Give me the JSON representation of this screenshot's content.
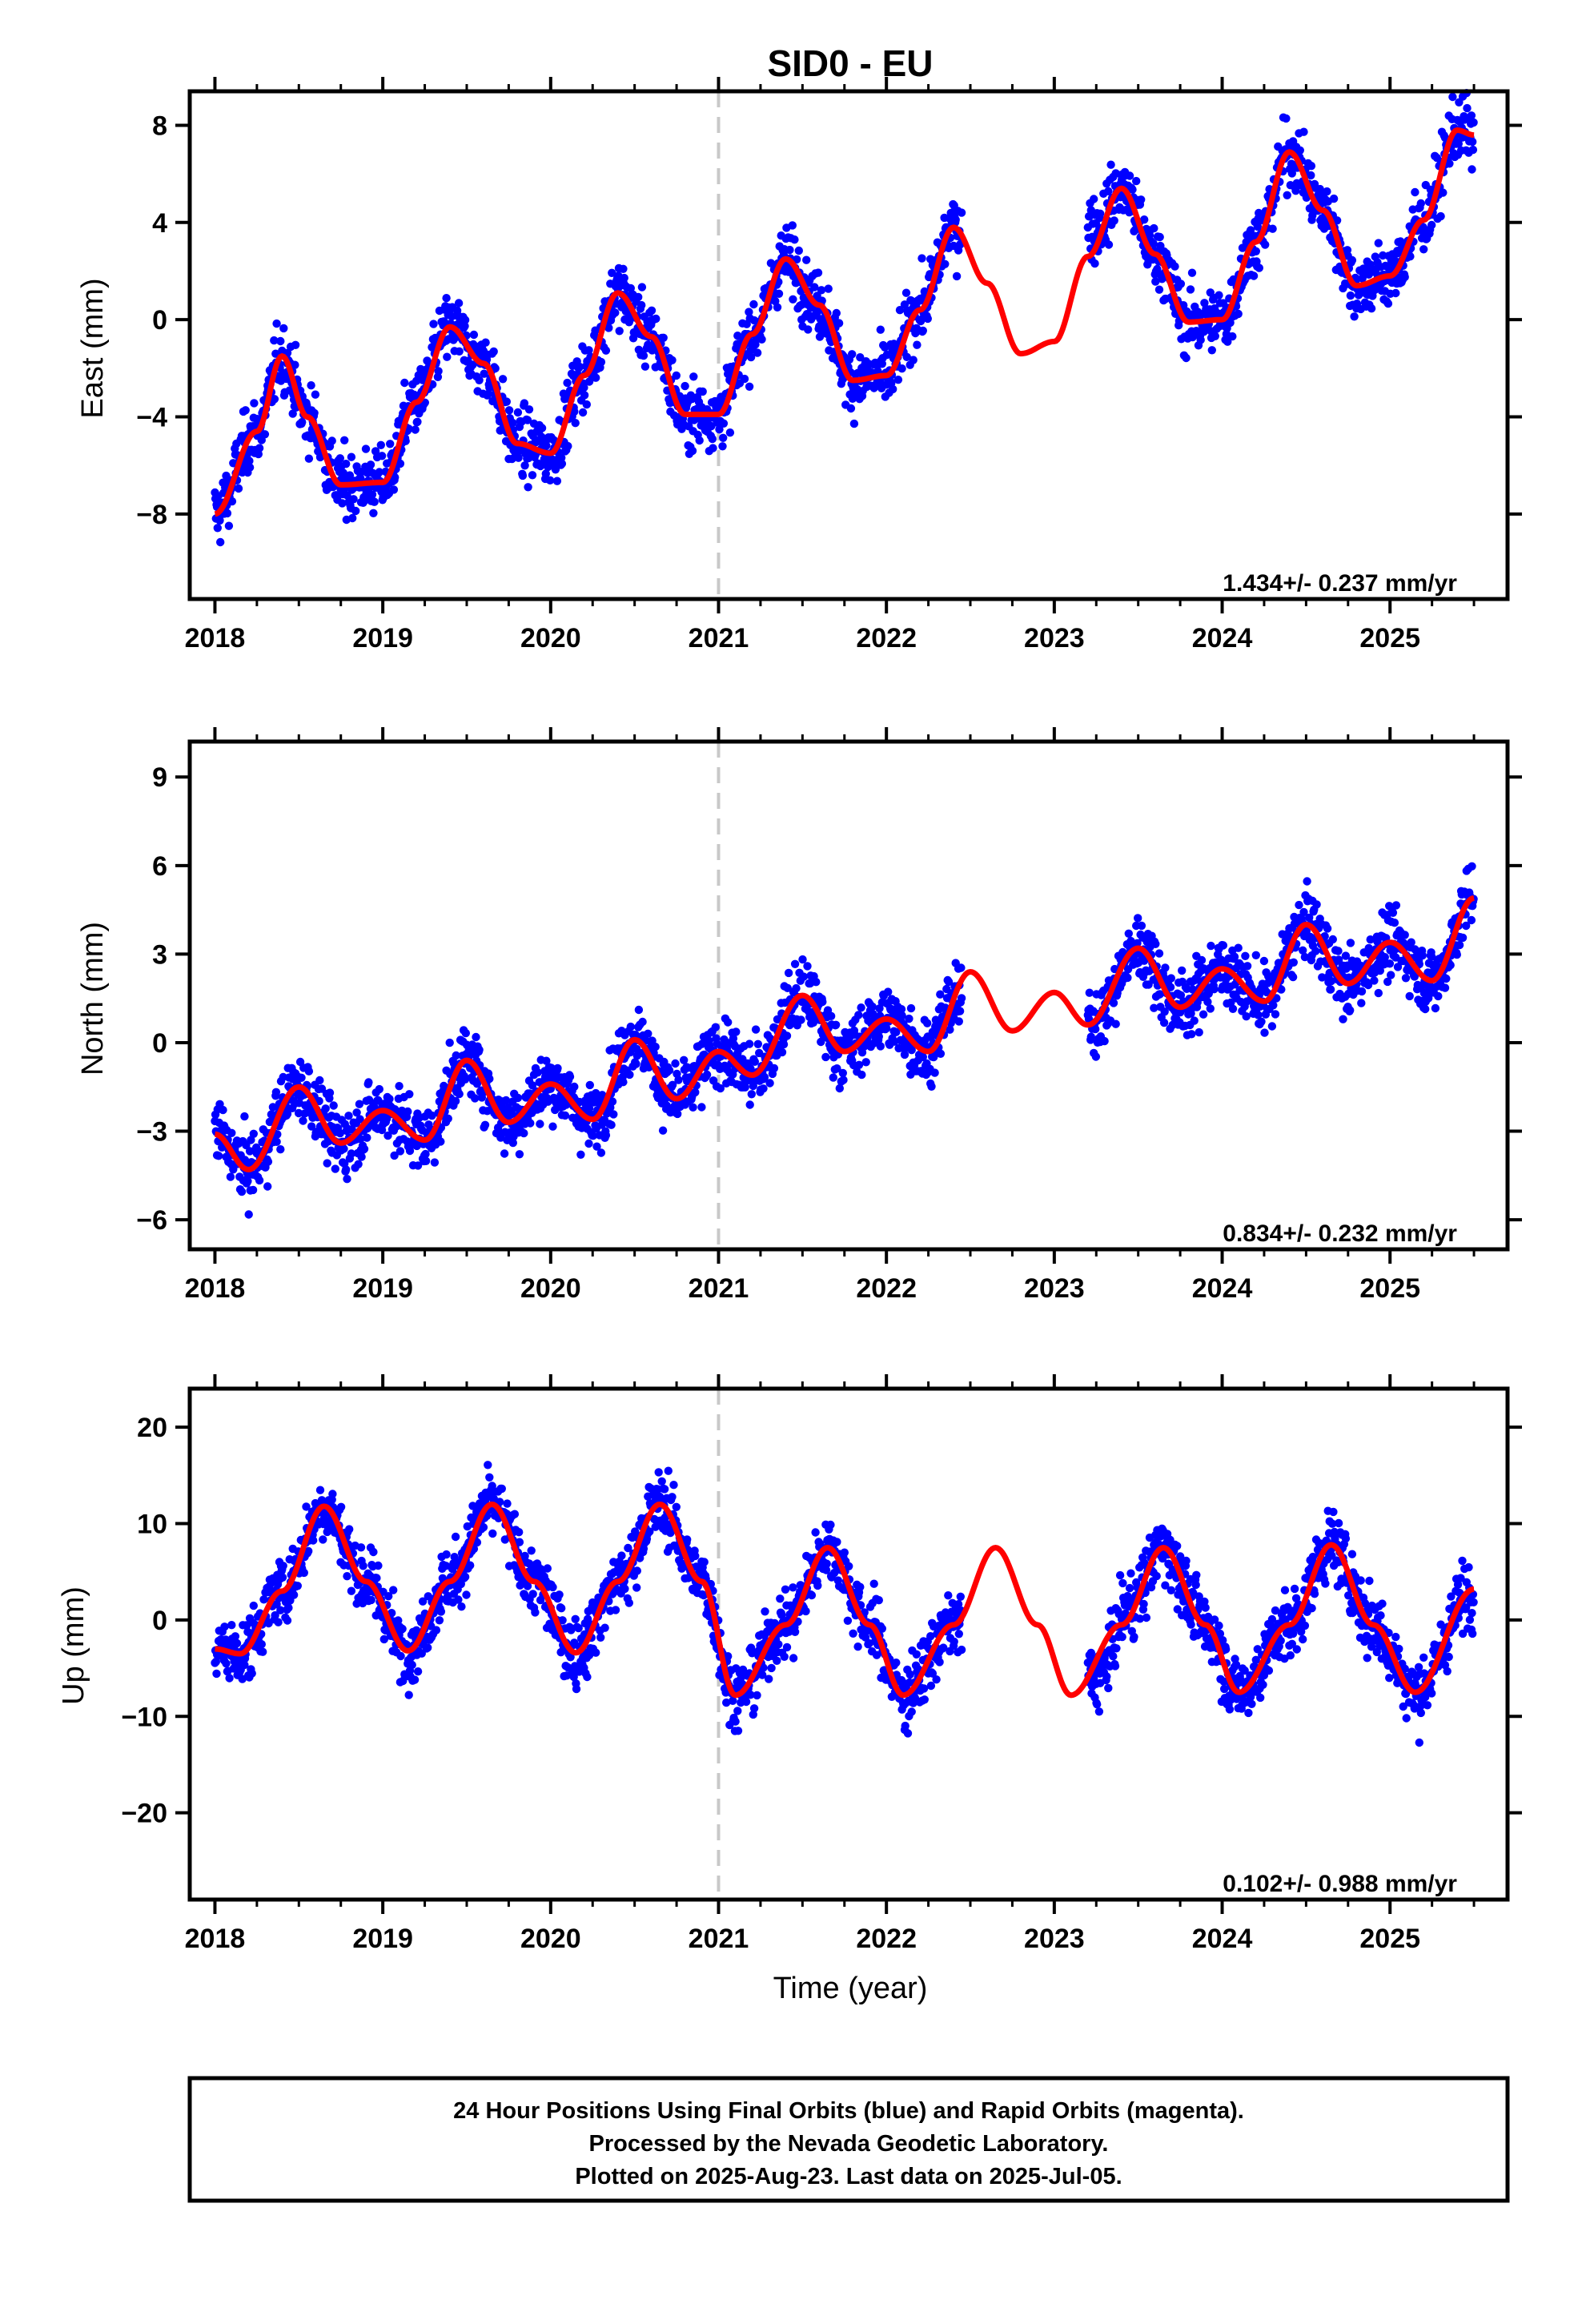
{
  "title": "SID0 - EU",
  "x_tick_labels": [
    "2018",
    "2019",
    "2020",
    "2021",
    "2022",
    "2023",
    "2024",
    "2025"
  ],
  "xlabel": "Time (year)",
  "footer": {
    "line1": "24 Hour Positions Using Final Orbits (blue) and Rapid Orbits (magenta).",
    "line2": "Processed by the Nevada Geodetic Laboratory.",
    "line3": "Plotted on 2025-Aug-23. Last data on 2025-Jul-05."
  },
  "colors": {
    "points": "#0000ff",
    "fit": "#ff0000",
    "break_line": "#c8c8c8",
    "axis": "#000000"
  },
  "chart_data": [
    {
      "type": "scatter",
      "panel": "east",
      "ylabel": "East (mm)",
      "rate_label": "1.434+/- 0.237 mm/yr",
      "xlim": [
        2017.85,
        2025.7
      ],
      "ylim": [
        -11.5,
        9.4
      ],
      "yticks": [
        -8,
        -4,
        0,
        4,
        8
      ],
      "ytick_labels": [
        "−8",
        "−4",
        "0",
        "4",
        "8"
      ],
      "break_epoch": 2021.0,
      "data_gap": [
        2022.45,
        2023.2
      ],
      "series": [
        {
          "kind": "daily positions",
          "style": "points",
          "x": [
            2018.0,
            2018.25,
            2018.4,
            2018.55,
            2018.75,
            2019.0,
            2019.2,
            2019.4,
            2019.6,
            2019.8,
            2020.0,
            2020.2,
            2020.4,
            2020.6,
            2020.8,
            2021.0,
            2021.2,
            2021.4,
            2021.6,
            2021.8,
            2022.0,
            2022.2,
            2022.4,
            2023.25,
            2023.4,
            2023.6,
            2023.8,
            2024.0,
            2024.2,
            2024.4,
            2024.6,
            2024.8,
            2025.0,
            2025.2,
            2025.4,
            2025.5
          ],
          "y": [
            -8.0,
            -4.6,
            -1.5,
            -4.0,
            -6.8,
            -6.7,
            -3.4,
            -0.3,
            -1.8,
            -5.1,
            -5.5,
            -2.3,
            1.1,
            -0.7,
            -3.9,
            -3.9,
            -0.6,
            2.5,
            0.6,
            -2.5,
            -2.3,
            0.4,
            3.8,
            3.8,
            5.4,
            2.7,
            -0.1,
            0.0,
            3.2,
            6.9,
            4.5,
            1.4,
            1.8,
            4.1,
            7.8,
            7.6
          ]
        },
        {
          "kind": "model fit",
          "style": "line",
          "x": [
            2018.0,
            2018.25,
            2018.4,
            2018.55,
            2018.75,
            2019.0,
            2019.2,
            2019.4,
            2019.6,
            2019.8,
            2020.0,
            2020.2,
            2020.4,
            2020.6,
            2020.8,
            2021.0,
            2021.2,
            2021.4,
            2021.6,
            2021.8,
            2022.0,
            2022.2,
            2022.4,
            2022.6,
            2022.8,
            2023.0,
            2023.2,
            2023.4,
            2023.6,
            2023.8,
            2024.0,
            2024.2,
            2024.4,
            2024.6,
            2024.8,
            2025.0,
            2025.2,
            2025.4,
            2025.5
          ],
          "y": [
            -8.0,
            -4.6,
            -1.5,
            -4.0,
            -6.8,
            -6.7,
            -3.4,
            -0.3,
            -1.8,
            -5.1,
            -5.5,
            -2.3,
            1.1,
            -0.7,
            -3.9,
            -3.9,
            -0.6,
            2.5,
            0.6,
            -2.5,
            -2.3,
            0.4,
            3.8,
            1.5,
            -1.4,
            -0.9,
            2.6,
            5.4,
            2.7,
            -0.1,
            0.0,
            3.2,
            6.9,
            4.5,
            1.4,
            1.8,
            4.1,
            7.8,
            7.6
          ]
        }
      ]
    },
    {
      "type": "scatter",
      "panel": "north",
      "ylabel": "North (mm)",
      "rate_label": "0.834+/- 0.232 mm/yr",
      "xlim": [
        2017.85,
        2025.7
      ],
      "ylim": [
        -7.0,
        10.2
      ],
      "yticks": [
        -6,
        -3,
        0,
        3,
        6,
        9
      ],
      "ytick_labels": [
        "−6",
        "−3",
        "0",
        "3",
        "6",
        "9"
      ],
      "break_epoch": 2021.0,
      "data_gap": [
        2022.45,
        2023.2
      ],
      "series": [
        {
          "kind": "daily positions",
          "style": "points",
          "x": [
            2018.0,
            2018.2,
            2018.5,
            2018.75,
            2019.0,
            2019.25,
            2019.5,
            2019.75,
            2020.0,
            2020.25,
            2020.5,
            2020.75,
            2021.0,
            2021.2,
            2021.5,
            2021.75,
            2022.0,
            2022.25,
            2022.4,
            2023.25,
            2023.5,
            2023.75,
            2024.0,
            2024.25,
            2024.5,
            2024.75,
            2025.0,
            2025.25,
            2025.5
          ],
          "y": [
            -3.1,
            -4.3,
            -1.5,
            -3.4,
            -2.3,
            -3.3,
            -0.6,
            -2.7,
            -1.4,
            -2.6,
            0.1,
            -1.9,
            -0.3,
            -1.1,
            1.6,
            -0.3,
            0.8,
            -0.3,
            1.4,
            0.8,
            3.2,
            1.2,
            2.5,
            1.4,
            4.0,
            2.0,
            3.4,
            2.1,
            4.9
          ]
        },
        {
          "kind": "model fit",
          "style": "line",
          "x": [
            2018.0,
            2018.2,
            2018.5,
            2018.75,
            2019.0,
            2019.25,
            2019.5,
            2019.75,
            2020.0,
            2020.25,
            2020.5,
            2020.75,
            2021.0,
            2021.2,
            2021.5,
            2021.75,
            2022.0,
            2022.25,
            2022.5,
            2022.75,
            2023.0,
            2023.2,
            2023.5,
            2023.75,
            2024.0,
            2024.25,
            2024.5,
            2024.75,
            2025.0,
            2025.25,
            2025.5
          ],
          "y": [
            -3.1,
            -4.3,
            -1.5,
            -3.4,
            -2.3,
            -3.3,
            -0.6,
            -2.7,
            -1.4,
            -2.6,
            0.1,
            -1.9,
            -0.3,
            -1.1,
            1.6,
            -0.3,
            0.8,
            -0.3,
            2.4,
            0.4,
            1.7,
            0.6,
            3.2,
            1.2,
            2.5,
            1.4,
            4.0,
            2.0,
            3.4,
            2.1,
            4.9
          ]
        }
      ]
    },
    {
      "type": "scatter",
      "panel": "up",
      "ylabel": "Up (mm)",
      "rate_label": "0.102+/- 0.988 mm/yr",
      "xlim": [
        2017.85,
        2025.7
      ],
      "ylim": [
        -29.0,
        24.0
      ],
      "yticks": [
        -20,
        -10,
        0,
        10,
        20
      ],
      "ytick_labels": [
        "−20",
        "−10",
        "0",
        "10",
        "20"
      ],
      "break_epoch": 2021.0,
      "data_gap": [
        2022.45,
        2023.2
      ],
      "series": [
        {
          "kind": "daily positions",
          "style": "points",
          "x": [
            2018.0,
            2018.15,
            2018.4,
            2018.65,
            2018.9,
            2019.15,
            2019.4,
            2019.65,
            2019.9,
            2020.15,
            2020.4,
            2020.65,
            2020.9,
            2021.1,
            2021.4,
            2021.65,
            2021.9,
            2022.1,
            2022.4,
            2023.25,
            2023.45,
            2023.65,
            2023.9,
            2024.1,
            2024.4,
            2024.65,
            2024.9,
            2025.15,
            2025.5
          ],
          "y": [
            -3.0,
            -3.5,
            3.0,
            11.8,
            4.0,
            -3.2,
            4.0,
            12.0,
            4.0,
            -3.4,
            4.0,
            12.0,
            4.0,
            -7.8,
            -0.5,
            7.5,
            -0.5,
            -7.8,
            -0.5,
            -6.0,
            1.5,
            7.5,
            -0.5,
            -7.5,
            -0.5,
            7.8,
            -0.5,
            -7.5,
            3.2
          ]
        },
        {
          "kind": "model fit",
          "style": "line",
          "x": [
            2018.0,
            2018.15,
            2018.4,
            2018.65,
            2018.9,
            2019.15,
            2019.4,
            2019.65,
            2019.9,
            2020.15,
            2020.4,
            2020.65,
            2020.9,
            2021.1,
            2021.4,
            2021.65,
            2021.9,
            2022.1,
            2022.4,
            2022.65,
            2022.9,
            2023.1,
            2023.4,
            2023.65,
            2023.9,
            2024.1,
            2024.4,
            2024.65,
            2024.9,
            2025.15,
            2025.5
          ],
          "y": [
            -3.0,
            -3.5,
            3.0,
            11.8,
            4.0,
            -3.2,
            4.0,
            12.0,
            4.0,
            -3.4,
            4.0,
            12.0,
            4.0,
            -7.8,
            -0.5,
            7.5,
            -0.5,
            -7.8,
            -0.5,
            7.5,
            -0.5,
            -7.8,
            -0.5,
            7.5,
            -0.5,
            -7.5,
            -0.5,
            7.8,
            -0.5,
            -7.5,
            3.2
          ]
        }
      ]
    }
  ]
}
